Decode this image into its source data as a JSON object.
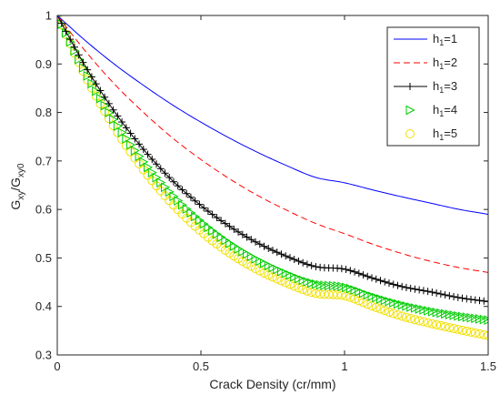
{
  "chart_data": {
    "type": "line",
    "xlabel": "Crack Density (cr/mm)",
    "ylabel": {
      "main": "G",
      "sub1": "xy",
      "mid": "/G",
      "sub2": "xy0"
    },
    "xlim": [
      0,
      1.5
    ],
    "ylim": [
      0.3,
      1
    ],
    "xticks": [
      0,
      0.5,
      1,
      1.5
    ],
    "xtick_labels": [
      "0",
      "0.5",
      "1",
      "1.5"
    ],
    "yticks": [
      0.3,
      0.4,
      0.5,
      0.6,
      0.7,
      0.8,
      0.9,
      1
    ],
    "ytick_labels": [
      "0.3",
      "0.4",
      "0.5",
      "0.6",
      "0.7",
      "0.8",
      "0.9",
      "1"
    ],
    "legend_position": "top-right",
    "grid": false,
    "x": [
      0,
      0.1,
      0.2,
      0.3,
      0.4,
      0.5,
      0.6,
      0.7,
      0.8,
      0.9,
      1.0,
      1.1,
      1.2,
      1.3,
      1.4,
      1.5
    ],
    "series": [
      {
        "name": {
          "base": "h",
          "sub": "1",
          "suffix": "=1"
        },
        "style": "solid",
        "marker": "none",
        "color": "#0000ff",
        "values": [
          1.0,
          0.947,
          0.899,
          0.856,
          0.816,
          0.78,
          0.747,
          0.717,
          0.69,
          0.666,
          0.655,
          0.64,
          0.626,
          0.613,
          0.6,
          0.59
        ]
      },
      {
        "name": {
          "base": "h",
          "sub": "1",
          "suffix": "=2"
        },
        "style": "dashed",
        "marker": "none",
        "color": "#ff0000",
        "values": [
          1.0,
          0.925,
          0.858,
          0.8,
          0.748,
          0.703,
          0.663,
          0.628,
          0.598,
          0.571,
          0.55,
          0.528,
          0.509,
          0.493,
          0.48,
          0.47
        ]
      },
      {
        "name": {
          "base": "h",
          "sub": "1",
          "suffix": "=3"
        },
        "style": "solid",
        "marker": "plus",
        "color": "#000000",
        "values": [
          1.0,
          0.893,
          0.801,
          0.724,
          0.66,
          0.608,
          0.565,
          0.53,
          0.503,
          0.482,
          0.477,
          0.458,
          0.441,
          0.43,
          0.418,
          0.41
        ]
      },
      {
        "name": {
          "base": "h",
          "sub": "1",
          "suffix": "=4"
        },
        "style": "none",
        "marker": "triangle-right",
        "color": "#00cc00",
        "values": [
          1.0,
          0.881,
          0.781,
          0.698,
          0.63,
          0.575,
          0.53,
          0.495,
          0.467,
          0.446,
          0.44,
          0.42,
          0.403,
          0.39,
          0.38,
          0.372
        ]
      },
      {
        "name": {
          "base": "h",
          "sub": "1",
          "suffix": "=5"
        },
        "style": "none",
        "marker": "circle",
        "color": "#f0e000",
        "values": [
          1.0,
          0.873,
          0.768,
          0.682,
          0.612,
          0.555,
          0.51,
          0.475,
          0.448,
          0.427,
          0.422,
          0.4,
          0.38,
          0.365,
          0.352,
          0.34
        ]
      }
    ]
  }
}
